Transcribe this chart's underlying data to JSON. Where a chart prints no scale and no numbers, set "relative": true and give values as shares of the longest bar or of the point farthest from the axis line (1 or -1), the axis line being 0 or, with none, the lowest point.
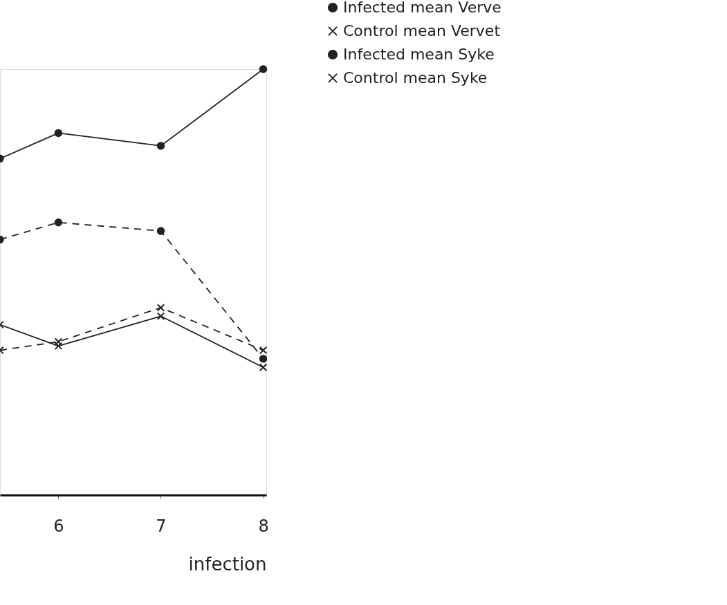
{
  "chart_data": {
    "type": "line",
    "relative": true,
    "xlabel": "infection",
    "xlim": [
      5.43,
      8.03
    ],
    "xticks": [
      6,
      7,
      8
    ],
    "grid": false,
    "legend": "top right",
    "series": [
      {
        "name": "Infected mean Verve",
        "color": "#222222",
        "marker": "circle",
        "line_style": "solid",
        "x": [
          5.43,
          6,
          7,
          8
        ],
        "values": [
          0.79,
          0.85,
          0.82,
          1
        ]
      },
      {
        "name": "Control mean Vervet",
        "color": "#222222",
        "marker": "cross",
        "line_style": "solid",
        "x": [
          5.43,
          6,
          7,
          8
        ],
        "values": [
          0.4,
          0.35,
          0.42,
          0.3
        ]
      },
      {
        "name": "Infected mean Syke",
        "color": "#222222",
        "marker": "circle",
        "line_style": "dashed",
        "x": [
          5.43,
          6,
          7,
          8
        ],
        "values": [
          0.6,
          0.64,
          0.62,
          0.32
        ]
      },
      {
        "name": "Control mean  Syke",
        "color": "#222222",
        "marker": "cross",
        "line_style": "dashed",
        "x": [
          5.43,
          6,
          7,
          8
        ],
        "values": [
          0.34,
          0.36,
          0.44,
          0.34
        ]
      }
    ]
  }
}
